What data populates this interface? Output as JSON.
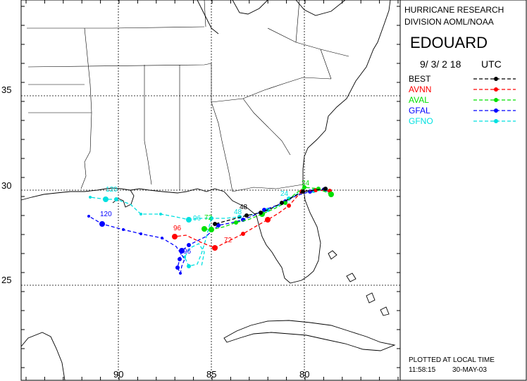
{
  "header": {
    "org_line1": "HURRICANE RESEARCH",
    "org_line2": "DIVISION AOML/NOAA",
    "storm_name": "EDOUARD",
    "datetime": "9/ 3/ 2 18",
    "tz": "UTC"
  },
  "footer": {
    "plotted": "PLOTTED AT LOCAL TIME",
    "time": "11:58:15",
    "date": "30-MAY-03"
  },
  "axes": {
    "lon_ticks": [
      {
        "label": "90"
      },
      {
        "label": "85"
      },
      {
        "label": "80"
      }
    ],
    "lat_ticks": [
      {
        "label": "35"
      },
      {
        "label": "30"
      },
      {
        "label": "25"
      }
    ]
  },
  "models": [
    {
      "name": "BEST",
      "color": "#000000"
    },
    {
      "name": "AVNN",
      "color": "#ff0000"
    },
    {
      "name": "AVAL",
      "color": "#00e000"
    },
    {
      "name": "GFAL",
      "color": "#0000ff"
    },
    {
      "name": "GFNO",
      "color": "#00e0e0"
    }
  ],
  "track_labels": [
    {
      "text": "24",
      "model": "AVAL"
    },
    {
      "text": "24",
      "model": "GFNO"
    },
    {
      "text": "48",
      "model": "BEST"
    },
    {
      "text": "48",
      "model": "GFNO"
    },
    {
      "text": "72",
      "model": "AVNN"
    },
    {
      "text": "72",
      "model": "AVAL"
    },
    {
      "text": "96",
      "model": "AVNN"
    },
    {
      "text": "96",
      "model": "GFNO"
    },
    {
      "text": "96",
      "model": "GFAL"
    },
    {
      "text": "120",
      "model": "GFAL"
    },
    {
      "text": "120",
      "model": "GFNO"
    }
  ]
}
